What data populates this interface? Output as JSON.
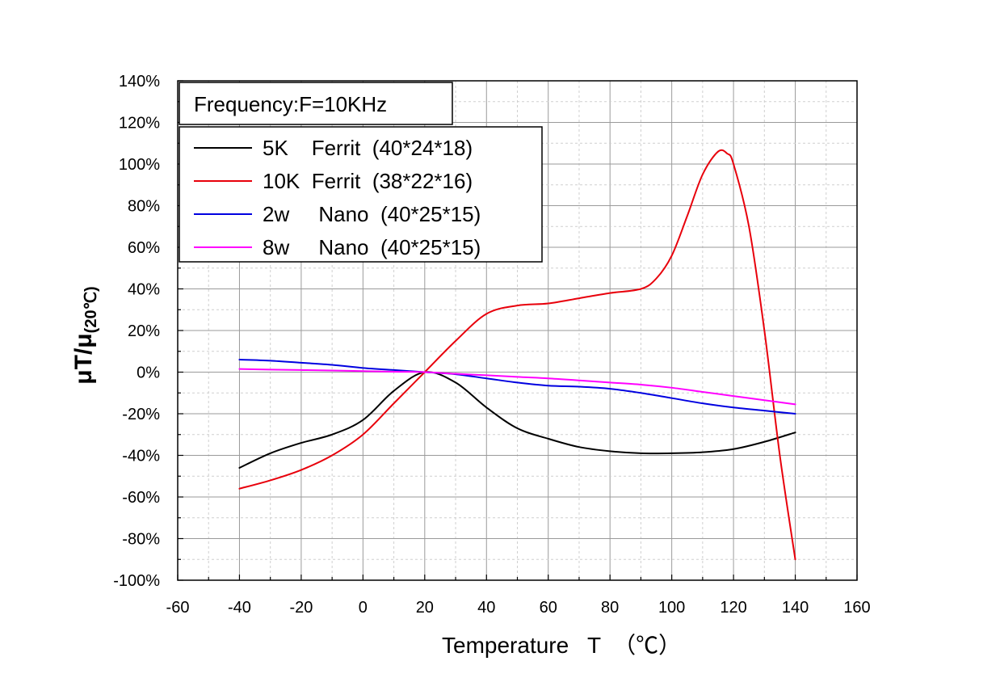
{
  "chart_data": {
    "type": "line",
    "annotation": "Frequency:F=10KHz",
    "xlabel": "Temperature   T  （℃）",
    "ylabel_main": "μT/μ",
    "ylabel_sub": "(20℃)",
    "xlim": [
      -60,
      160
    ],
    "ylim": [
      -100,
      140
    ],
    "x_ticks": [
      -60,
      -40,
      -20,
      0,
      20,
      40,
      60,
      80,
      100,
      120,
      140,
      160
    ],
    "y_ticks": [
      -100,
      -80,
      -60,
      -40,
      -20,
      0,
      20,
      40,
      60,
      80,
      100,
      120,
      140
    ],
    "x_tick_labels": [
      "-60",
      "-40",
      "-20",
      "0",
      "20",
      "40",
      "60",
      "80",
      "100",
      "120",
      "140",
      "160"
    ],
    "y_tick_labels": [
      "-100%",
      "-80%",
      "-60%",
      "-40%",
      "-20%",
      "0%",
      "20%",
      "40%",
      "60%",
      "80%",
      "100%",
      "120%",
      "140%"
    ],
    "grid": true,
    "legend_position": "top-left",
    "series": [
      {
        "name": "5K    Ferrit  (40*24*18)",
        "color": "#000000",
        "x": [
          -40,
          -30,
          -20,
          -10,
          0,
          10,
          20,
          30,
          40,
          50,
          60,
          70,
          80,
          90,
          100,
          110,
          120,
          130,
          140
        ],
        "y": [
          -46,
          -39,
          -34,
          -30,
          -23,
          -9,
          0,
          -5,
          -17,
          -27,
          -32,
          -36,
          -38,
          -39,
          -39,
          -38.5,
          -37,
          -33.5,
          -29
        ]
      },
      {
        "name": "10K  Ferrit  (38*22*16)",
        "color": "#e8000b",
        "x": [
          -40,
          -30,
          -20,
          -10,
          0,
          10,
          20,
          30,
          40,
          50,
          60,
          70,
          80,
          90,
          95,
          100,
          105,
          110,
          115,
          118,
          120,
          125,
          130,
          135,
          140
        ],
        "y": [
          -56,
          -52,
          -47,
          -40,
          -30,
          -15,
          0,
          15,
          28,
          32,
          33,
          35.5,
          38,
          40,
          45,
          56,
          75,
          95,
          106,
          105,
          100,
          70,
          20,
          -40,
          -90
        ]
      },
      {
        "name": "2w     Nano  (40*25*15)",
        "color": "#0000e0",
        "x": [
          -40,
          -30,
          -20,
          -10,
          0,
          10,
          20,
          30,
          40,
          50,
          60,
          70,
          80,
          90,
          100,
          110,
          120,
          130,
          140
        ],
        "y": [
          6,
          5.5,
          4.5,
          3.5,
          2,
          1,
          0,
          -1,
          -3,
          -5,
          -6.5,
          -7,
          -8,
          -10,
          -12.5,
          -15,
          -17,
          -18.5,
          -20
        ]
      },
      {
        "name": "8w     Nano  (40*25*15)",
        "color": "#ff00ff",
        "x": [
          -40,
          -30,
          -20,
          -10,
          0,
          10,
          20,
          30,
          40,
          50,
          60,
          70,
          80,
          90,
          100,
          110,
          120,
          130,
          140
        ],
        "y": [
          1.5,
          1.2,
          1,
          0.8,
          0.5,
          0.2,
          0,
          -0.8,
          -1.5,
          -2.3,
          -3,
          -4,
          -5,
          -6,
          -7.5,
          -9.5,
          -11.5,
          -13.5,
          -15.5
        ]
      }
    ]
  }
}
